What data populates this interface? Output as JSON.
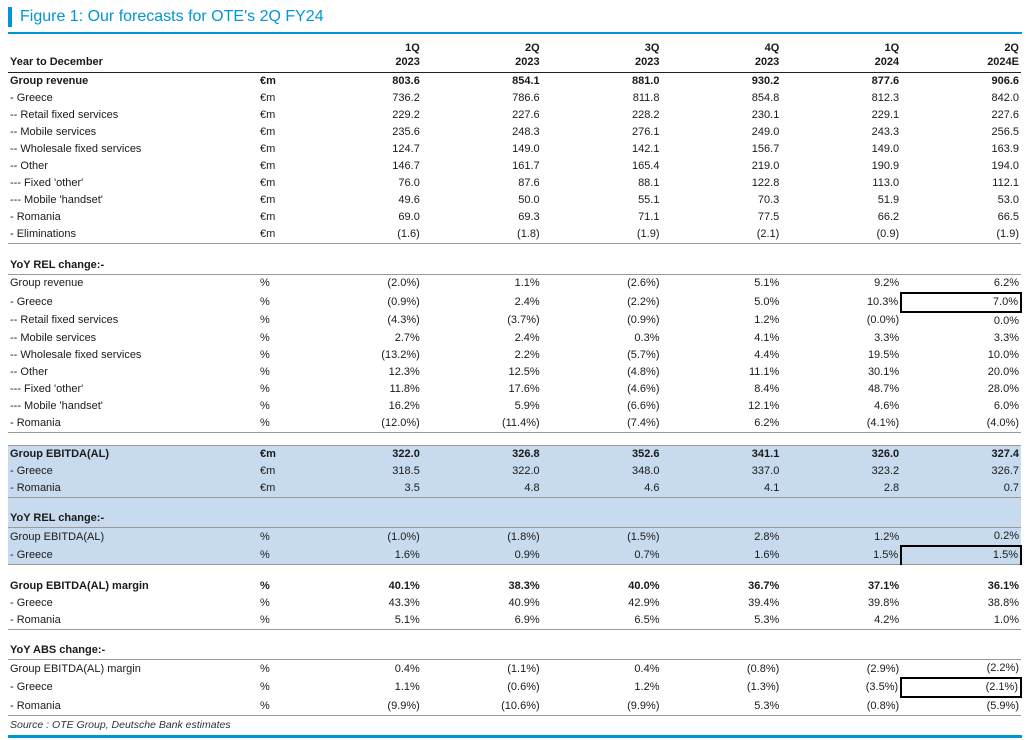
{
  "figure": {
    "title": "Figure 1: Our forecasts for OTE's 2Q FY24",
    "source": "Source : OTE Group, Deutsche Bank estimates",
    "accent_color": "#0096D6",
    "highlight_color": "#C7DAEE"
  },
  "table": {
    "header": {
      "label": "Year to December",
      "columns": [
        {
          "q": "1Q",
          "year": "2023"
        },
        {
          "q": "2Q",
          "year": "2023"
        },
        {
          "q": "3Q",
          "year": "2023"
        },
        {
          "q": "4Q",
          "year": "2023"
        },
        {
          "q": "1Q",
          "year": "2024"
        },
        {
          "q": "2Q",
          "year": "2024E"
        }
      ]
    },
    "rows": [
      {
        "label": "Group revenue",
        "unit": "€m",
        "values": [
          "803.6",
          "854.1",
          "881.0",
          "930.2",
          "877.6",
          "906.6"
        ],
        "bold": true
      },
      {
        "label": "- Greece",
        "unit": "€m",
        "values": [
          "736.2",
          "786.6",
          "811.8",
          "854.8",
          "812.3",
          "842.0"
        ]
      },
      {
        "label": "-- Retail fixed services",
        "unit": "€m",
        "values": [
          "229.2",
          "227.6",
          "228.2",
          "230.1",
          "229.1",
          "227.6"
        ]
      },
      {
        "label": "-- Mobile services",
        "unit": "€m",
        "values": [
          "235.6",
          "248.3",
          "276.1",
          "249.0",
          "243.3",
          "256.5"
        ]
      },
      {
        "label": "-- Wholesale fixed services",
        "unit": "€m",
        "values": [
          "124.7",
          "149.0",
          "142.1",
          "156.7",
          "149.0",
          "163.9"
        ]
      },
      {
        "label": "-- Other",
        "unit": "€m",
        "values": [
          "146.7",
          "161.7",
          "165.4",
          "219.0",
          "190.9",
          "194.0"
        ]
      },
      {
        "label": "--- Fixed 'other'",
        "unit": "€m",
        "values": [
          "76.0",
          "87.6",
          "88.1",
          "122.8",
          "113.0",
          "112.1"
        ]
      },
      {
        "label": "--- Mobile 'handset'",
        "unit": "€m",
        "values": [
          "49.6",
          "50.0",
          "55.1",
          "70.3",
          "51.9",
          "53.0"
        ]
      },
      {
        "label": "- Romania",
        "unit": "€m",
        "values": [
          "69.0",
          "69.3",
          "71.1",
          "77.5",
          "66.2",
          "66.5"
        ]
      },
      {
        "label": "- Eliminations",
        "unit": "€m",
        "values": [
          "(1.6)",
          "(1.8)",
          "(1.9)",
          "(2.1)",
          "(0.9)",
          "(1.9)"
        ],
        "rule": true
      },
      {
        "blank": true
      },
      {
        "label": "YoY REL change:-",
        "bold": true,
        "rule": true
      },
      {
        "label": "Group revenue",
        "unit": "%",
        "values": [
          "(2.0%)",
          "1.1%",
          "(2.6%)",
          "5.1%",
          "9.2%",
          "6.2%"
        ]
      },
      {
        "label": "- Greece",
        "unit": "%",
        "values": [
          "(0.9%)",
          "2.4%",
          "(2.2%)",
          "5.0%",
          "10.3%",
          "7.0%"
        ],
        "box_last": true
      },
      {
        "label": "-- Retail fixed services",
        "unit": "%",
        "values": [
          "(4.3%)",
          "(3.7%)",
          "(0.9%)",
          "1.2%",
          "(0.0%)",
          "0.0%"
        ]
      },
      {
        "label": "-- Mobile services",
        "unit": "%",
        "values": [
          "2.7%",
          "2.4%",
          "0.3%",
          "4.1%",
          "3.3%",
          "3.3%"
        ]
      },
      {
        "label": "-- Wholesale fixed services",
        "unit": "%",
        "values": [
          "(13.2%)",
          "2.2%",
          "(5.7%)",
          "4.4%",
          "19.5%",
          "10.0%"
        ]
      },
      {
        "label": "-- Other",
        "unit": "%",
        "values": [
          "12.3%",
          "12.5%",
          "(4.8%)",
          "11.1%",
          "30.1%",
          "20.0%"
        ]
      },
      {
        "label": "--- Fixed 'other'",
        "unit": "%",
        "values": [
          "11.8%",
          "17.6%",
          "(4.6%)",
          "8.4%",
          "48.7%",
          "28.0%"
        ]
      },
      {
        "label": "--- Mobile 'handset'",
        "unit": "%",
        "values": [
          "16.2%",
          "5.9%",
          "(6.6%)",
          "12.1%",
          "4.6%",
          "6.0%"
        ]
      },
      {
        "label": "- Romania",
        "unit": "%",
        "values": [
          "(12.0%)",
          "(11.4%)",
          "(7.4%)",
          "6.2%",
          "(4.1%)",
          "(4.0%)"
        ],
        "rule": true
      },
      {
        "blank": true,
        "rule": true
      },
      {
        "label": "Group EBITDA(AL)",
        "unit": "€m",
        "values": [
          "322.0",
          "326.8",
          "352.6",
          "341.1",
          "326.0",
          "327.4"
        ],
        "bold": true,
        "highlight": true
      },
      {
        "label": "- Greece",
        "unit": "€m",
        "values": [
          "318.5",
          "322.0",
          "348.0",
          "337.0",
          "323.2",
          "326.7"
        ],
        "highlight": true
      },
      {
        "label": "- Romania",
        "unit": "€m",
        "values": [
          "3.5",
          "4.8",
          "4.6",
          "4.1",
          "2.8",
          "0.7"
        ],
        "highlight": true,
        "rule": true
      },
      {
        "blank": true,
        "highlight": true
      },
      {
        "label": "YoY REL change:-",
        "bold": true,
        "highlight": true,
        "rule": true
      },
      {
        "label": "Group EBITDA(AL)",
        "unit": "%",
        "values": [
          "(1.0%)",
          "(1.8%)",
          "(1.5%)",
          "2.8%",
          "1.2%",
          "0.2%"
        ],
        "highlight": true
      },
      {
        "label": "- Greece",
        "unit": "%",
        "values": [
          "1.6%",
          "0.9%",
          "0.7%",
          "1.6%",
          "1.5%",
          "1.5%"
        ],
        "highlight": true,
        "box_last": true,
        "rule": true
      },
      {
        "blank": true
      },
      {
        "label": "Group EBITDA(AL) margin",
        "unit": "%",
        "values": [
          "40.1%",
          "38.3%",
          "40.0%",
          "36.7%",
          "37.1%",
          "36.1%"
        ],
        "bold": true
      },
      {
        "label": "- Greece",
        "unit": "%",
        "values": [
          "43.3%",
          "40.9%",
          "42.9%",
          "39.4%",
          "39.8%",
          "38.8%"
        ]
      },
      {
        "label": "- Romania",
        "unit": "%",
        "values": [
          "5.1%",
          "6.9%",
          "6.5%",
          "5.3%",
          "4.2%",
          "1.0%"
        ],
        "rule": true
      },
      {
        "blank": true
      },
      {
        "label": "YoY ABS change:-",
        "bold": true,
        "rule": true
      },
      {
        "label": "Group EBITDA(AL) margin",
        "unit": "%",
        "values": [
          "0.4%",
          "(1.1%)",
          "0.4%",
          "(0.8%)",
          "(2.9%)",
          "(2.2%)"
        ]
      },
      {
        "label": "- Greece",
        "unit": "%",
        "values": [
          "1.1%",
          "(0.6%)",
          "1.2%",
          "(1.3%)",
          "(3.5%)",
          "(2.1%)"
        ],
        "box_last": true
      },
      {
        "label": "- Romania",
        "unit": "%",
        "values": [
          "(9.9%)",
          "(10.6%)",
          "(9.9%)",
          "5.3%",
          "(0.8%)",
          "(5.9%)"
        ],
        "rule": true
      }
    ]
  }
}
